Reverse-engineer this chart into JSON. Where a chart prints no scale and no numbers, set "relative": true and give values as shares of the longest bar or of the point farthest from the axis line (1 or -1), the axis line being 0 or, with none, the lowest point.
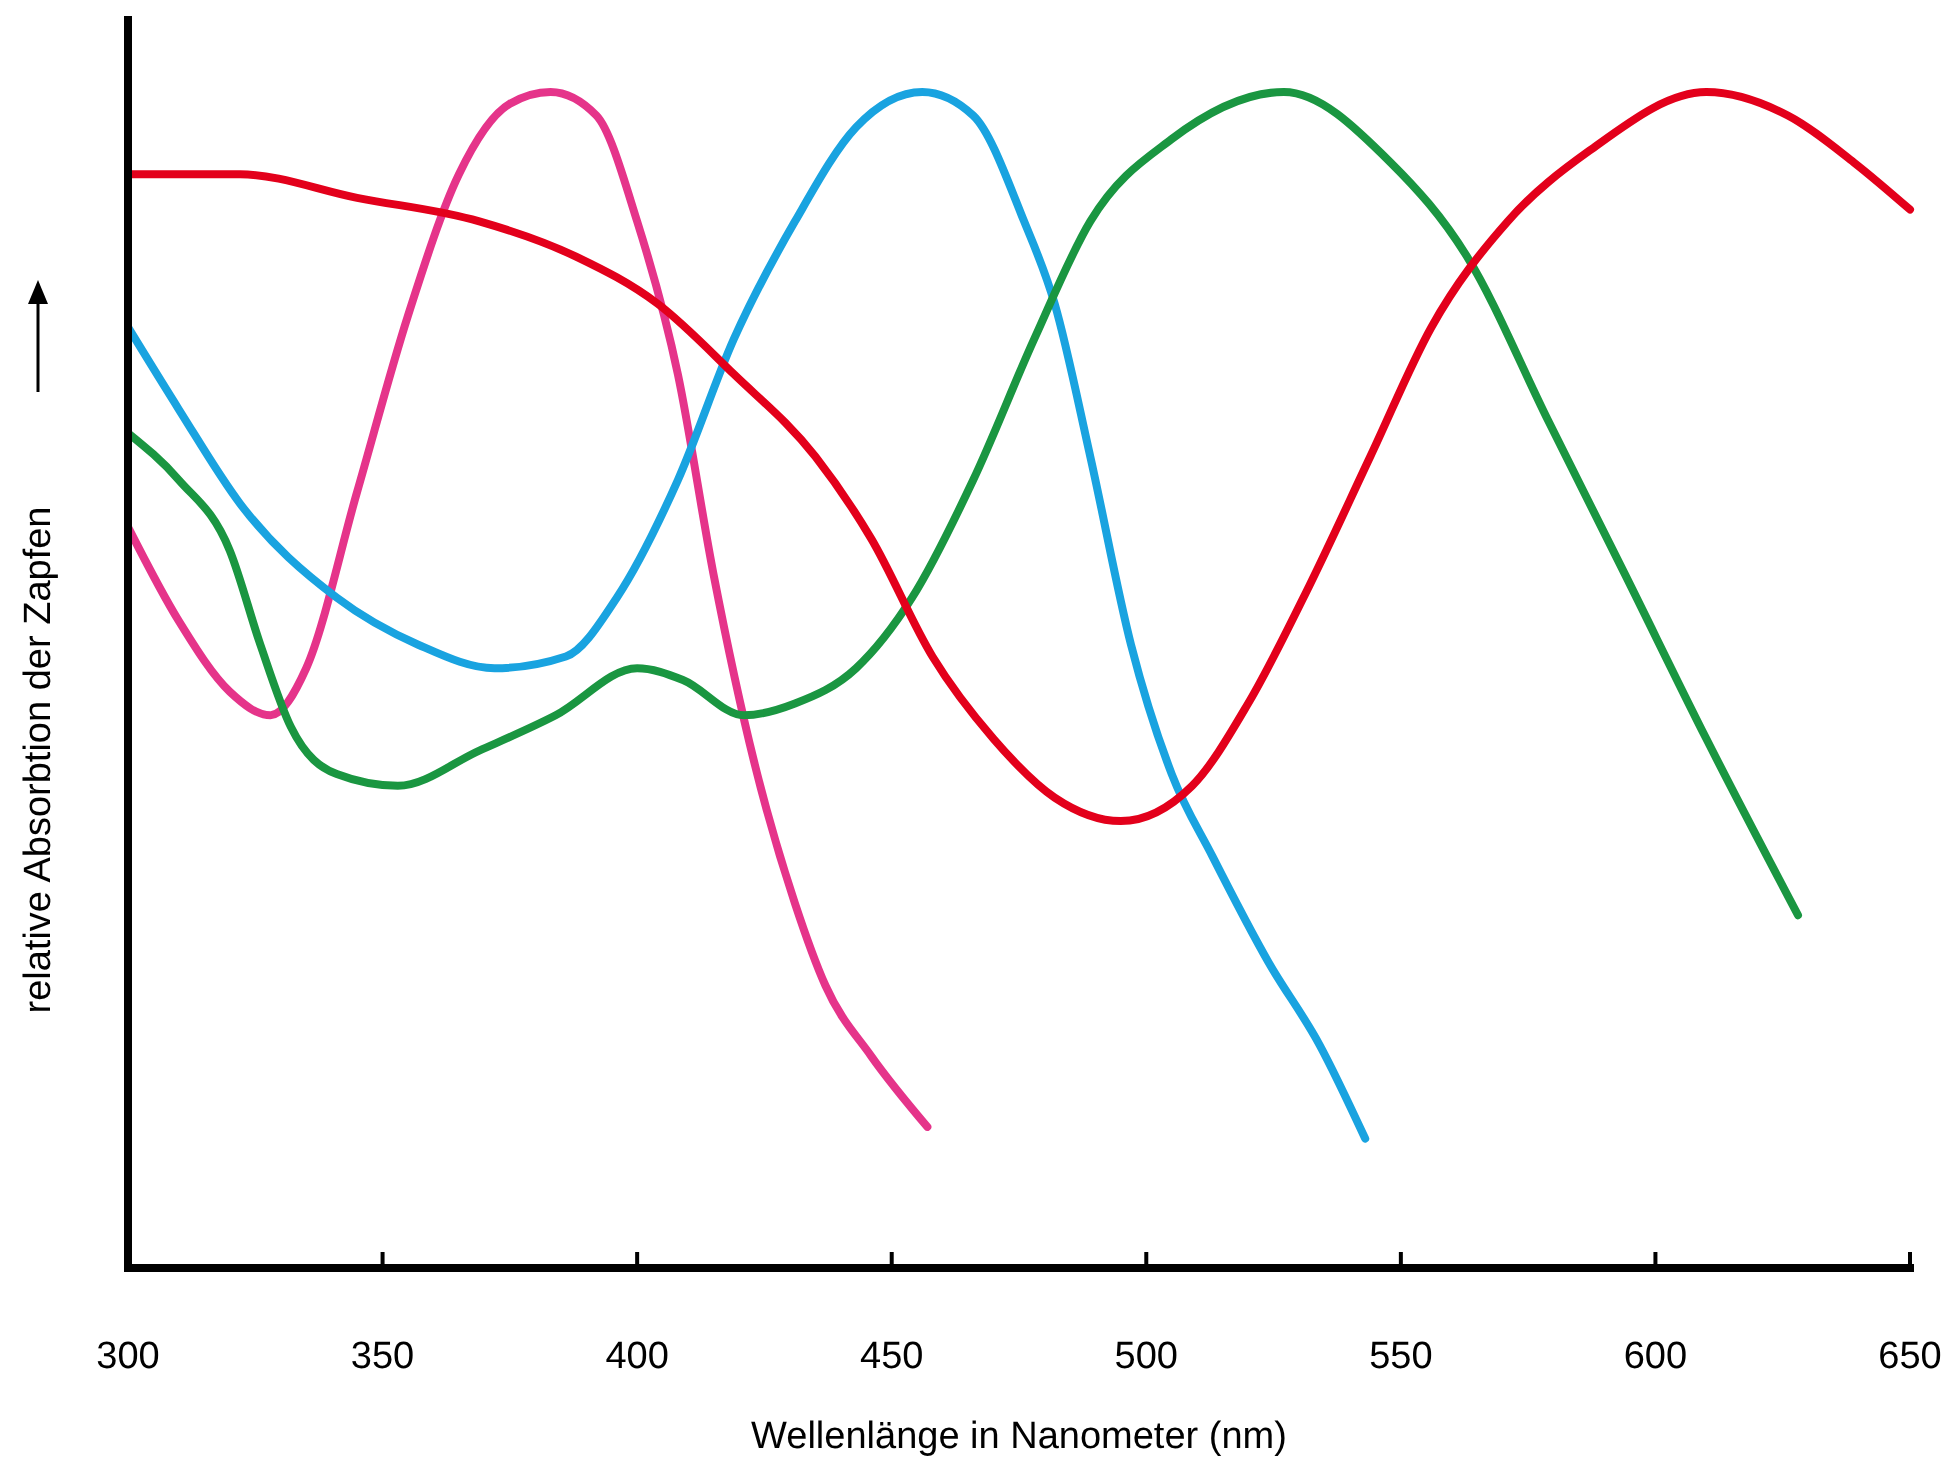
{
  "chart_data": {
    "type": "line",
    "relative": true,
    "xlabel": "Wellenlänge in Nanometer (nm)",
    "ylabel": "relative Absorbtion der Zapfen",
    "xlim": [
      300,
      650
    ],
    "xticks": [
      300,
      350,
      400,
      450,
      500,
      550,
      600,
      650
    ],
    "grid": false,
    "line_style": "solid",
    "series": [
      {
        "color": "#e5348a",
        "x": [
          300,
          310,
          320,
          328,
          335,
          345,
          355,
          365,
          375,
          383,
          392,
          400,
          408,
          415,
          423,
          431,
          437,
          446,
          457
        ],
        "values": [
          0.63,
          0.55,
          0.49,
          0.47,
          0.51,
          0.66,
          0.81,
          0.93,
          0.99,
          1.0,
          0.98,
          0.89,
          0.76,
          0.59,
          0.43,
          0.31,
          0.24,
          0.18,
          0.12
        ]
      },
      {
        "color": "#19a3e0",
        "x": [
          300,
          310,
          322,
          341,
          357,
          372,
          386,
          396,
          408,
          419,
          431,
          443,
          456,
          466,
          476,
          482,
          489,
          497,
          505,
          513,
          524,
          534,
          543
        ],
        "values": [
          0.8,
          0.73,
          0.65,
          0.57,
          0.53,
          0.51,
          0.52,
          0.57,
          0.67,
          0.79,
          0.89,
          0.97,
          1.0,
          0.98,
          0.89,
          0.82,
          0.69,
          0.53,
          0.42,
          0.35,
          0.26,
          0.19,
          0.11
        ]
      },
      {
        "color": "#1a9641",
        "x": [
          300,
          310,
          320,
          326,
          332,
          341,
          353,
          369,
          384,
          400,
          409,
          421,
          431,
          443,
          454,
          466,
          478,
          489,
          505,
          527,
          548,
          563,
          579,
          594,
          610,
          628
        ],
        "values": [
          0.71,
          0.67,
          0.61,
          0.53,
          0.46,
          0.42,
          0.41,
          0.44,
          0.47,
          0.51,
          0.5,
          0.47,
          0.48,
          0.51,
          0.57,
          0.67,
          0.79,
          0.89,
          0.96,
          1.0,
          0.94,
          0.86,
          0.72,
          0.59,
          0.45,
          0.3
        ]
      },
      {
        "color": "#e3001b",
        "x": [
          300,
          322,
          345,
          369,
          388,
          404,
          419,
          435,
          446,
          458,
          470,
          482,
          495,
          509,
          520,
          532,
          544,
          556,
          571,
          587,
          610,
          626,
          639,
          650
        ],
        "values": [
          0.93,
          0.93,
          0.91,
          0.89,
          0.86,
          0.82,
          0.76,
          0.69,
          0.62,
          0.52,
          0.45,
          0.4,
          0.38,
          0.41,
          0.48,
          0.58,
          0.69,
          0.8,
          0.89,
          0.95,
          1.0,
          0.98,
          0.94,
          0.9
        ]
      }
    ]
  }
}
